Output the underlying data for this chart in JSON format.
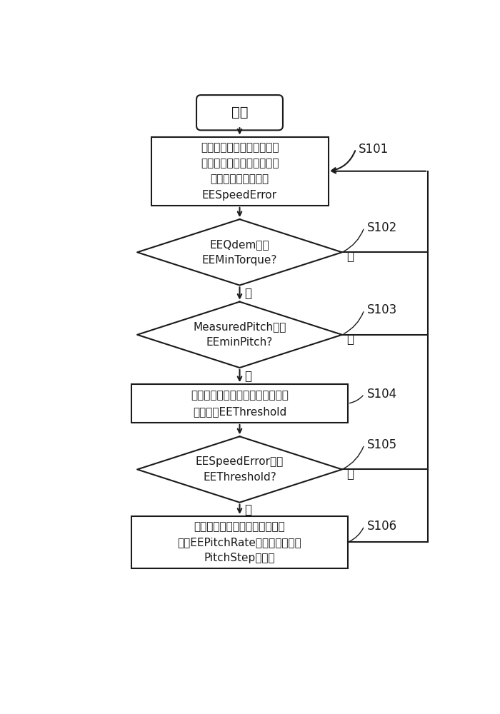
{
  "bg_color": "#ffffff",
  "line_color": "#1a1a1a",
  "text_color": "#1a1a1a",
  "start_text": "开始",
  "s101_text": "监测发电机测量转速，根据\n当前转速设定点，计算动态\n推力削减转速参考值\nEESpeedError",
  "s101_label": "S101",
  "s102_text": "EEQdem大于\nEEMinTorque?",
  "s102_label": "S102",
  "s103_text": "MeasuredPitch大于\nEEminPitch?",
  "s103_label": "S103",
  "s104_text": "计算当前时刻的动态推力削减转速\n参考阈値EEThreshold",
  "s104_label": "S104",
  "s105_text": "EESpeedError大于\nEEThreshold?",
  "s105_label": "S105",
  "s106_text": "在原始桨距角给定值上额外叠加\n预讽EEPitchRate与转矩控制步长\nPitchStep的乘积",
  "s106_label": "S106",
  "yes_text": "是",
  "no_text": "否"
}
